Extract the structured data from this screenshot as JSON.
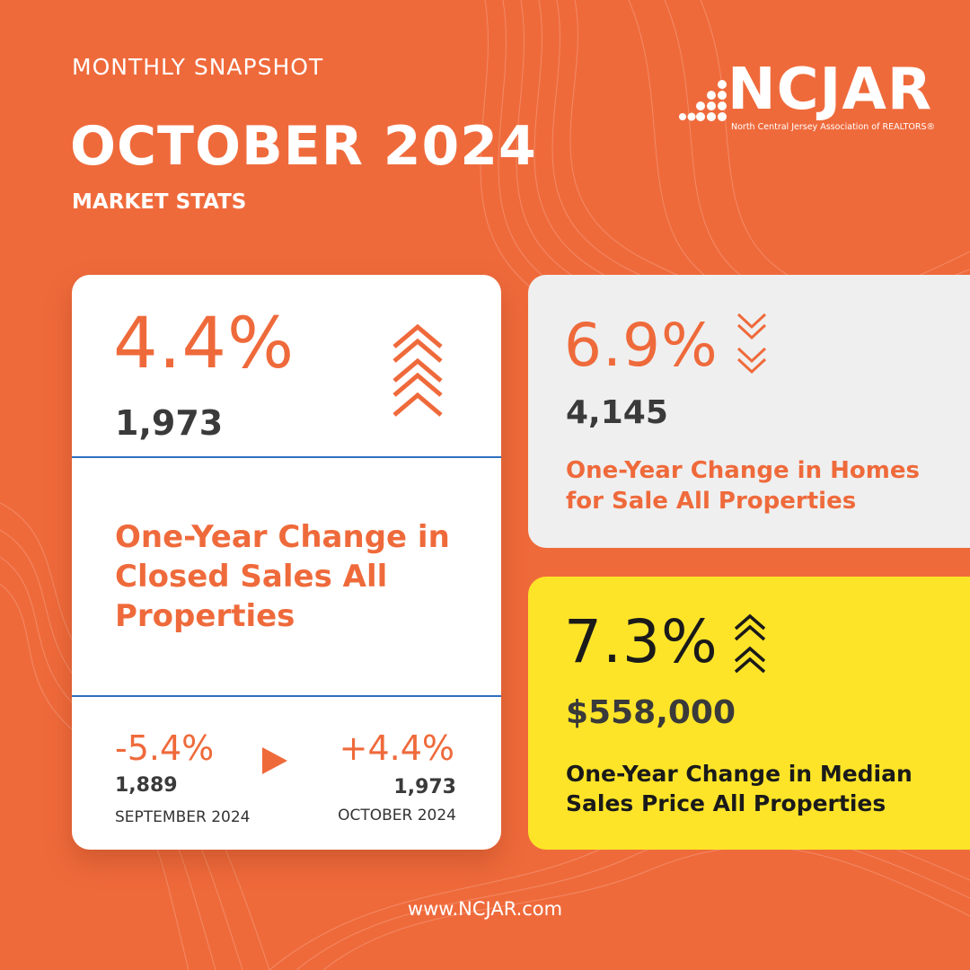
{
  "header": {
    "subtitle": "MONTHLY SNAPSHOT",
    "title": "OCTOBER 2024",
    "tag": "MARKET STATS"
  },
  "logo": {
    "wordmark": "NCJAR",
    "tagline": "North Central Jersey  Association of REALTORS®"
  },
  "closed_sales": {
    "percent": "4.4%",
    "count": "1,973",
    "trend_icon": "triple-chevron-up-icon",
    "description": "One-Year Change in Closed Sales All Properties",
    "previous": {
      "change": "-5.4%",
      "count": "1,889",
      "label": "SEPTEMBER  2024"
    },
    "current": {
      "change": "+4.4%",
      "count": "1,973",
      "label": "OCTOBER 2024"
    }
  },
  "homes_for_sale": {
    "percent": "6.9%",
    "count": "4,145",
    "trend_icon": "double-chevron-down-icon",
    "description": "One-Year Change in Homes for Sale All Properties"
  },
  "median_price": {
    "percent": "7.3%",
    "value": "$558,000",
    "trend_icon": "double-chevron-up-icon",
    "description": "One-Year Change in Median Sales Price All Properties"
  },
  "footer": {
    "url": "www.NCJAR.com"
  },
  "colors": {
    "background": "#ef6a3b",
    "accent": "#ef6a3b",
    "highlight": "#fde428",
    "divider": "#2f6fc0"
  }
}
